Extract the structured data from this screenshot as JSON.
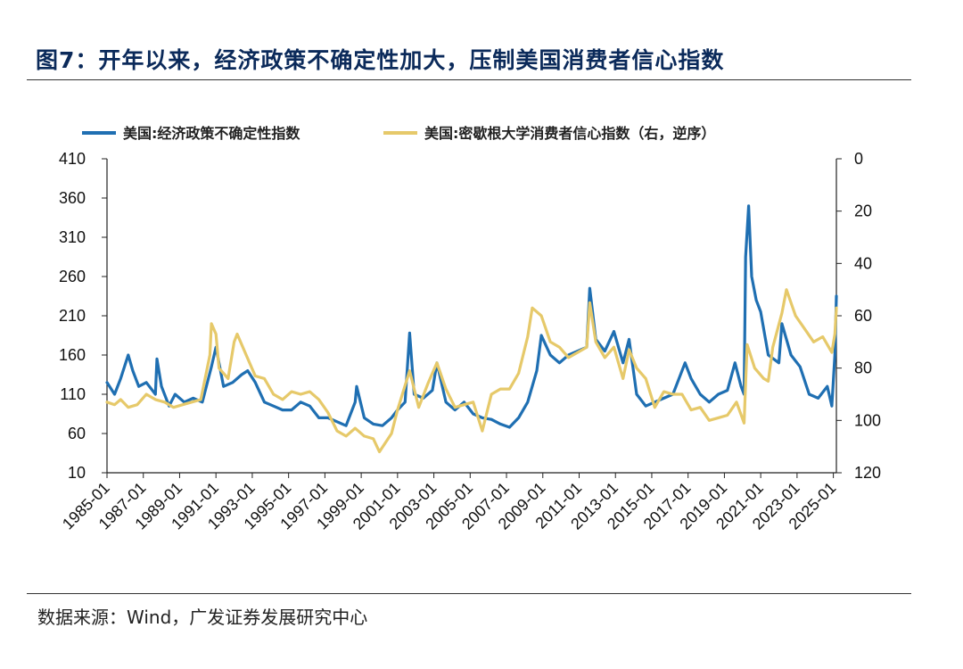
{
  "header": {
    "title": "图7：开年以来，经济政策不确定性加大，压制美国消费者信心指数"
  },
  "footer": {
    "source": "数据来源：Wind，广发证券发展研究中心"
  },
  "chart_data": {
    "type": "line",
    "x_start": "1985-01",
    "x_end": "2025-03",
    "x_tick_labels": [
      "1985-01",
      "1987-01",
      "1989-01",
      "1991-01",
      "1993-01",
      "1995-01",
      "1997-01",
      "1999-01",
      "2001-01",
      "2003-01",
      "2005-01",
      "2007-01",
      "2009-01",
      "2011-01",
      "2013-01",
      "2015-01",
      "2017-01",
      "2019-01",
      "2021-01",
      "2023-01",
      "2025-01"
    ],
    "y_left": {
      "ticks": [
        "10",
        "60",
        "110",
        "160",
        "210",
        "260",
        "310",
        "360",
        "410"
      ],
      "range": [
        10,
        410
      ]
    },
    "y_right": {
      "ticks": [
        "0",
        "20",
        "40",
        "60",
        "80",
        "100",
        "120"
      ],
      "range": [
        0,
        120
      ],
      "reversed": true
    },
    "legend_position": "top",
    "series": [
      {
        "name": "美国:经济政策不确定性指数",
        "axis": "left",
        "color": "#1f6fb2",
        "points": [
          [
            "1985-01",
            125
          ],
          [
            "1985-06",
            110
          ],
          [
            "1985-10",
            130
          ],
          [
            "1986-03",
            160
          ],
          [
            "1986-06",
            140
          ],
          [
            "1986-10",
            120
          ],
          [
            "1987-03",
            125
          ],
          [
            "1987-09",
            110
          ],
          [
            "1987-10",
            155
          ],
          [
            "1988-01",
            120
          ],
          [
            "1988-06",
            95
          ],
          [
            "1988-10",
            110
          ],
          [
            "1989-04",
            100
          ],
          [
            "1989-10",
            105
          ],
          [
            "1990-04",
            100
          ],
          [
            "1990-08",
            130
          ],
          [
            "1990-10",
            145
          ],
          [
            "1991-01",
            170
          ],
          [
            "1991-06",
            120
          ],
          [
            "1991-12",
            125
          ],
          [
            "1992-06",
            135
          ],
          [
            "1992-10",
            140
          ],
          [
            "1993-03",
            125
          ],
          [
            "1993-09",
            100
          ],
          [
            "1994-03",
            95
          ],
          [
            "1994-09",
            90
          ],
          [
            "1995-03",
            90
          ],
          [
            "1995-09",
            100
          ],
          [
            "1996-03",
            95
          ],
          [
            "1996-09",
            80
          ],
          [
            "1997-03",
            80
          ],
          [
            "1997-09",
            75
          ],
          [
            "1998-03",
            70
          ],
          [
            "1998-09",
            100
          ],
          [
            "1998-10",
            120
          ],
          [
            "1999-03",
            80
          ],
          [
            "1999-09",
            72
          ],
          [
            "2000-03",
            70
          ],
          [
            "2000-09",
            80
          ],
          [
            "2001-01",
            90
          ],
          [
            "2001-06",
            100
          ],
          [
            "2001-09",
            188
          ],
          [
            "2001-12",
            110
          ],
          [
            "2002-06",
            105
          ],
          [
            "2002-12",
            115
          ],
          [
            "2003-03",
            150
          ],
          [
            "2003-09",
            100
          ],
          [
            "2004-03",
            90
          ],
          [
            "2004-09",
            100
          ],
          [
            "2005-03",
            85
          ],
          [
            "2005-09",
            80
          ],
          [
            "2006-03",
            78
          ],
          [
            "2006-09",
            72
          ],
          [
            "2007-03",
            68
          ],
          [
            "2007-09",
            80
          ],
          [
            "2008-03",
            100
          ],
          [
            "2008-09",
            140
          ],
          [
            "2008-12",
            185
          ],
          [
            "2009-06",
            160
          ],
          [
            "2009-12",
            150
          ],
          [
            "2010-06",
            160
          ],
          [
            "2010-12",
            165
          ],
          [
            "2011-06",
            170
          ],
          [
            "2011-08",
            245
          ],
          [
            "2011-12",
            180
          ],
          [
            "2012-06",
            165
          ],
          [
            "2012-12",
            190
          ],
          [
            "2013-06",
            150
          ],
          [
            "2013-10",
            180
          ],
          [
            "2014-03",
            110
          ],
          [
            "2014-09",
            95
          ],
          [
            "2015-03",
            100
          ],
          [
            "2015-09",
            105
          ],
          [
            "2016-03",
            110
          ],
          [
            "2016-06",
            125
          ],
          [
            "2016-11",
            150
          ],
          [
            "2017-03",
            130
          ],
          [
            "2017-09",
            110
          ],
          [
            "2018-03",
            100
          ],
          [
            "2018-09",
            110
          ],
          [
            "2019-03",
            115
          ],
          [
            "2019-08",
            150
          ],
          [
            "2019-12",
            120
          ],
          [
            "2020-02",
            110
          ],
          [
            "2020-03",
            285
          ],
          [
            "2020-05",
            350
          ],
          [
            "2020-07",
            260
          ],
          [
            "2020-10",
            230
          ],
          [
            "2021-01",
            215
          ],
          [
            "2021-06",
            160
          ],
          [
            "2022-01",
            150
          ],
          [
            "2022-03",
            200
          ],
          [
            "2022-09",
            160
          ],
          [
            "2023-03",
            145
          ],
          [
            "2023-09",
            110
          ],
          [
            "2024-03",
            105
          ],
          [
            "2024-09",
            120
          ],
          [
            "2024-12",
            95
          ],
          [
            "2025-02",
            160
          ],
          [
            "2025-03",
            235
          ]
        ]
      },
      {
        "name": "美国:密歇根大学消费者信心指数（右，逆序）",
        "axis": "right",
        "color": "#e6c96a",
        "points": [
          [
            "1985-01",
            93
          ],
          [
            "1985-06",
            94
          ],
          [
            "1985-10",
            92
          ],
          [
            "1986-03",
            95
          ],
          [
            "1986-09",
            94
          ],
          [
            "1987-03",
            90
          ],
          [
            "1987-09",
            92
          ],
          [
            "1988-03",
            93
          ],
          [
            "1988-09",
            95
          ],
          [
            "1989-03",
            94
          ],
          [
            "1989-09",
            93
          ],
          [
            "1990-03",
            92
          ],
          [
            "1990-09",
            75
          ],
          [
            "1990-10",
            63
          ],
          [
            "1991-01",
            67
          ],
          [
            "1991-03",
            80
          ],
          [
            "1991-09",
            84
          ],
          [
            "1992-01",
            70
          ],
          [
            "1992-03",
            67
          ],
          [
            "1992-09",
            75
          ],
          [
            "1993-03",
            83
          ],
          [
            "1993-09",
            84
          ],
          [
            "1994-03",
            90
          ],
          [
            "1994-09",
            92
          ],
          [
            "1995-03",
            89
          ],
          [
            "1995-09",
            90
          ],
          [
            "1996-03",
            89
          ],
          [
            "1996-09",
            92
          ],
          [
            "1997-03",
            97
          ],
          [
            "1997-09",
            104
          ],
          [
            "1998-03",
            106
          ],
          [
            "1998-09",
            103
          ],
          [
            "1999-03",
            106
          ],
          [
            "1999-09",
            107
          ],
          [
            "2000-01",
            112
          ],
          [
            "2000-09",
            105
          ],
          [
            "2001-01",
            96
          ],
          [
            "2001-09",
            81
          ],
          [
            "2002-03",
            95
          ],
          [
            "2002-09",
            86
          ],
          [
            "2003-03",
            78
          ],
          [
            "2003-09",
            88
          ],
          [
            "2004-03",
            95
          ],
          [
            "2004-09",
            94
          ],
          [
            "2005-03",
            93
          ],
          [
            "2005-09",
            104
          ],
          [
            "2006-03",
            90
          ],
          [
            "2006-09",
            88
          ],
          [
            "2007-03",
            88
          ],
          [
            "2007-09",
            82
          ],
          [
            "2008-03",
            68
          ],
          [
            "2008-06",
            57
          ],
          [
            "2008-12",
            60
          ],
          [
            "2009-06",
            70
          ],
          [
            "2009-12",
            72
          ],
          [
            "2010-06",
            76
          ],
          [
            "2010-12",
            74
          ],
          [
            "2011-06",
            72
          ],
          [
            "2011-08",
            55
          ],
          [
            "2011-12",
            70
          ],
          [
            "2012-06",
            76
          ],
          [
            "2012-12",
            72
          ],
          [
            "2013-06",
            84
          ],
          [
            "2013-10",
            73
          ],
          [
            "2014-03",
            80
          ],
          [
            "2014-09",
            84
          ],
          [
            "2015-03",
            95
          ],
          [
            "2015-09",
            89
          ],
          [
            "2016-03",
            90
          ],
          [
            "2016-09",
            90
          ],
          [
            "2017-03",
            96
          ],
          [
            "2017-09",
            95
          ],
          [
            "2018-03",
            100
          ],
          [
            "2018-09",
            99
          ],
          [
            "2019-03",
            98
          ],
          [
            "2019-09",
            93
          ],
          [
            "2020-02",
            101
          ],
          [
            "2020-04",
            71
          ],
          [
            "2020-09",
            80
          ],
          [
            "2021-03",
            84
          ],
          [
            "2021-06",
            85
          ],
          [
            "2021-09",
            72
          ],
          [
            "2022-03",
            59
          ],
          [
            "2022-06",
            50
          ],
          [
            "2022-12",
            60
          ],
          [
            "2023-06",
            65
          ],
          [
            "2023-12",
            70
          ],
          [
            "2024-06",
            68
          ],
          [
            "2024-12",
            74
          ],
          [
            "2025-02",
            67
          ],
          [
            "2025-03",
            57
          ]
        ]
      }
    ]
  }
}
